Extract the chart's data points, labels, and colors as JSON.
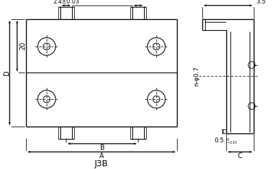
{
  "title": "J3B",
  "bg_color": "#ffffff",
  "line_color": "#000000",
  "fig_width": 4.02,
  "fig_height": 2.47,
  "dpi": 100,
  "annotations": {
    "dim_top": "2.4±0.03",
    "dim_right_top": "3.5",
    "dim_D": "D",
    "dim_20": "20",
    "dim_phi": "n-φ0.7",
    "dim_B": "B",
    "dim_A": "A",
    "dim_C": "C",
    "dim_05": "0.5",
    "dim_tol": "$^{0}_{-0.10}$"
  }
}
